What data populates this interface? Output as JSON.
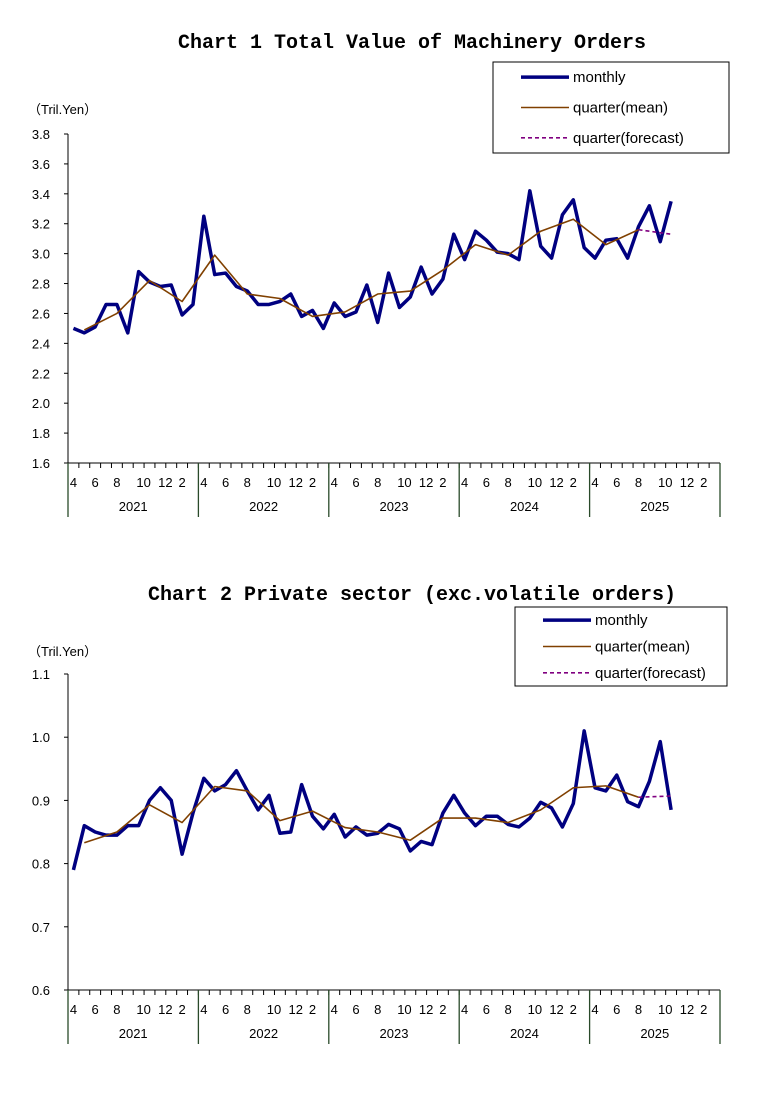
{
  "chart_data": [
    {
      "type": "line",
      "title": "Chart 1 Total Value of Machinery Orders",
      "unit": "（Tril.Yen）",
      "ylim": [
        1.6,
        3.8
      ],
      "yticks": [
        "1.6",
        "1.8",
        "2.0",
        "2.2",
        "2.4",
        "2.6",
        "2.8",
        "3.0",
        "3.2",
        "3.4",
        "3.6",
        "3.8"
      ],
      "x_start": "2021-04",
      "x_end": "2026-03",
      "month_tick_labels": [
        "4",
        "6",
        "8",
        "10",
        "12",
        "2"
      ],
      "years": [
        "2021",
        "2022",
        "2023",
        "2024",
        "2025"
      ],
      "legend_position": "top-right",
      "grid": false,
      "series": [
        {
          "name": "monthly",
          "color": "#000080",
          "x_month_index_from_2021_04": "0-55",
          "values": [
            2.5,
            2.47,
            2.51,
            2.66,
            2.66,
            2.47,
            2.88,
            2.81,
            2.78,
            2.79,
            2.59,
            2.66,
            3.25,
            2.86,
            2.87,
            2.78,
            2.75,
            2.66,
            2.66,
            2.68,
            2.73,
            2.58,
            2.62,
            2.5,
            2.67,
            2.58,
            2.61,
            2.79,
            2.54,
            2.87,
            2.64,
            2.71,
            2.91,
            2.73,
            2.83,
            3.13,
            2.96,
            3.15,
            3.09,
            3.01,
            3.0,
            2.96,
            3.42,
            3.05,
            2.97,
            3.26,
            3.36,
            3.04,
            2.97,
            3.09,
            3.1,
            2.97,
            3.18,
            3.32,
            3.08,
            3.35
          ]
        },
        {
          "name": "quarter(mean)",
          "color": "#804000",
          "x": [
            "2021-05",
            "2021-08",
            "2021-11",
            "2022-02",
            "2022-05",
            "2022-08",
            "2022-11",
            "2023-02",
            "2023-05",
            "2023-08",
            "2023-11",
            "2024-02",
            "2024-05",
            "2024-08",
            "2024-11",
            "2025-02",
            "2025-05",
            "2025-08"
          ],
          "values": [
            2.49,
            2.6,
            2.82,
            2.68,
            2.99,
            2.73,
            2.7,
            2.58,
            2.61,
            2.73,
            2.75,
            2.89,
            3.06,
            2.99,
            3.15,
            3.23,
            3.06,
            3.16
          ]
        },
        {
          "name": "quarter(forecast)",
          "color": "#800080",
          "x": [
            "2025-08",
            "2025-11"
          ],
          "values": [
            3.16,
            3.13
          ]
        }
      ]
    },
    {
      "type": "line",
      "title": "Chart 2 Private sector (exc.volatile orders)",
      "unit": "（Tril.Yen）",
      "ylim": [
        0.6,
        1.1
      ],
      "yticks": [
        "0.6",
        "0.7",
        "0.8",
        "0.9",
        "1.0",
        "1.1"
      ],
      "x_start": "2021-04",
      "x_end": "2026-03",
      "month_tick_labels": [
        "4",
        "6",
        "8",
        "10",
        "12",
        "2"
      ],
      "years": [
        "2021",
        "2022",
        "2023",
        "2024",
        "2025"
      ],
      "legend_position": "top-right",
      "grid": false,
      "series": [
        {
          "name": "monthly",
          "color": "#000080",
          "x_month_index_from_2021_04": "0-55",
          "values": [
            0.79,
            0.86,
            0.85,
            0.845,
            0.845,
            0.86,
            0.86,
            0.9,
            0.92,
            0.9,
            0.815,
            0.88,
            0.935,
            0.915,
            0.925,
            0.947,
            0.915,
            0.885,
            0.908,
            0.848,
            0.85,
            0.925,
            0.875,
            0.855,
            0.878,
            0.842,
            0.858,
            0.845,
            0.848,
            0.862,
            0.855,
            0.82,
            0.835,
            0.83,
            0.88,
            0.908,
            0.88,
            0.86,
            0.875,
            0.875,
            0.862,
            0.858,
            0.872,
            0.897,
            0.888,
            0.858,
            0.895,
            1.01,
            0.92,
            0.915,
            0.94,
            0.898,
            0.89,
            0.93,
            0.993,
            0.885
          ]
        },
        {
          "name": "quarter(mean)",
          "color": "#804000",
          "x": [
            "2021-05",
            "2021-08",
            "2021-11",
            "2022-02",
            "2022-05",
            "2022-08",
            "2022-11",
            "2023-02",
            "2023-05",
            "2023-08",
            "2023-11",
            "2024-02",
            "2024-05",
            "2024-08",
            "2024-11",
            "2025-02",
            "2025-05",
            "2025-08"
          ],
          "values": [
            0.833,
            0.85,
            0.893,
            0.865,
            0.922,
            0.915,
            0.868,
            0.883,
            0.857,
            0.85,
            0.837,
            0.872,
            0.872,
            0.865,
            0.885,
            0.92,
            0.923,
            0.905
          ]
        },
        {
          "name": "quarter(forecast)",
          "color": "#800080",
          "x": [
            "2025-08",
            "2025-11"
          ],
          "values": [
            0.905,
            0.907
          ]
        }
      ]
    }
  ]
}
